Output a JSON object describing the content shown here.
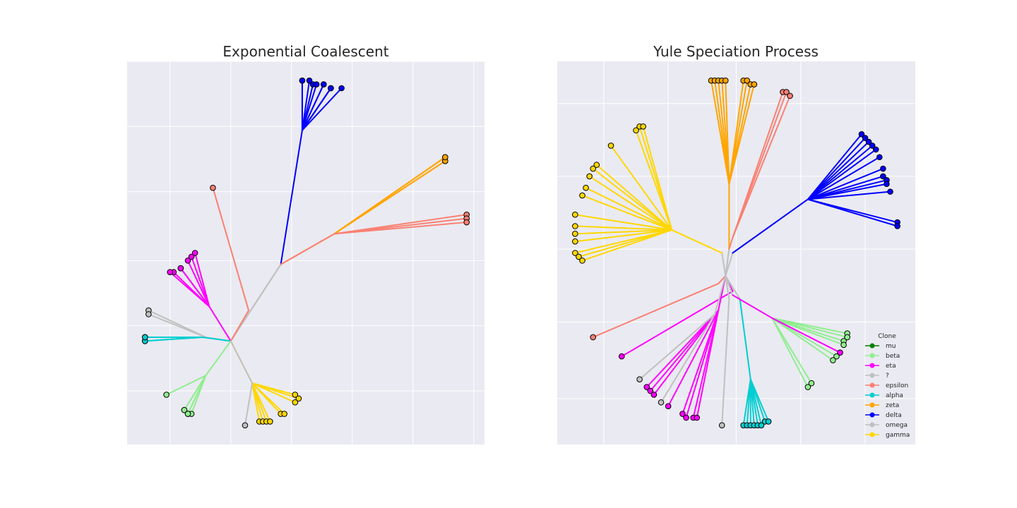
{
  "colors": {
    "background": "#eaeaf2",
    "grid": "#ffffff",
    "marker_edge": "#000000"
  },
  "legend": {
    "title": "Clone",
    "entries": [
      {
        "label": "mu",
        "color": "#008000"
      },
      {
        "label": "beta",
        "color": "#90ee90"
      },
      {
        "label": "eta",
        "color": "#ff00ff"
      },
      {
        "label": "?",
        "color": "#c0c0c0"
      },
      {
        "label": "epsilon",
        "color": "#fa8072"
      },
      {
        "label": "alpha",
        "color": "#00ced1"
      },
      {
        "label": "zeta",
        "color": "#ffa500"
      },
      {
        "label": "delta",
        "color": "#0000ff"
      },
      {
        "label": "omega",
        "color": "#c0c0c0"
      },
      {
        "label": "gamma",
        "color": "#ffd700"
      }
    ]
  },
  "chart_data": [
    {
      "type": "tree",
      "title": "Exponential Coalescent",
      "xlim": [
        0,
        100
      ],
      "ylim": [
        0,
        100
      ],
      "xticks": [
        12,
        29,
        46,
        63,
        80,
        97
      ],
      "yticks": [
        14,
        31,
        48,
        66,
        83,
        100
      ],
      "root": [
        29,
        27
      ],
      "clades": [
        {
          "clone": "delta",
          "color": "#0000ff",
          "path": [
            [
              43,
              47
            ],
            [
              49,
              82
            ]
          ],
          "leaves": [
            [
              49,
              95
            ],
            [
              49,
              95
            ],
            [
              51,
              95
            ],
            [
              52,
              94
            ],
            [
              55,
              94
            ],
            [
              57,
              93
            ],
            [
              57,
              93
            ],
            [
              57,
              93
            ],
            [
              55,
              94
            ],
            [
              60,
              93
            ],
            [
              53,
              94
            ]
          ]
        },
        {
          "clone": "zeta",
          "color": "#ffa500",
          "path": [
            [
              43,
              47
            ],
            [
              58,
              55
            ]
          ],
          "leaves": [
            [
              89,
              75
            ],
            [
              89,
              74
            ],
            [
              89,
              74
            ],
            [
              89,
              75
            ]
          ]
        },
        {
          "clone": "epsilon",
          "color": "#fa8072",
          "path": [
            [
              43,
              47
            ],
            [
              58,
              55
            ]
          ],
          "leaves": [
            [
              95,
              60
            ],
            [
              95,
              59
            ],
            [
              95,
              58
            ]
          ]
        },
        {
          "clone": "epsilon",
          "color": "#fa8072",
          "path": [
            [
              34,
              35
            ]
          ],
          "leaves": [
            [
              24,
              67
            ]
          ]
        },
        {
          "clone": "eta",
          "color": "#ff00ff",
          "path": [
            [
              23,
              36
            ]
          ],
          "leaves": [
            [
              18,
              49
            ],
            [
              19,
              50
            ],
            [
              15,
              46
            ],
            [
              15,
              46
            ],
            [
              13,
              45
            ],
            [
              12,
              45
            ],
            [
              17,
              48
            ]
          ]
        },
        {
          "clone": "?",
          "color": "#c0c0c0",
          "path": [
            [
              22,
              28
            ]
          ],
          "leaves": [
            [
              6,
              35
            ],
            [
              6,
              34
            ]
          ]
        },
        {
          "clone": "alpha",
          "color": "#00ced1",
          "path": [
            [
              21,
              28
            ]
          ],
          "leaves": [
            [
              5,
              28
            ],
            [
              5,
              28
            ],
            [
              5,
              27
            ],
            [
              5,
              27
            ],
            [
              5,
              28
            ]
          ]
        },
        {
          "clone": "beta",
          "color": "#90ee90",
          "path": [
            [
              22,
              18
            ]
          ],
          "leaves": [
            [
              11,
              13
            ],
            [
              16,
              9
            ],
            [
              16,
              9
            ],
            [
              17,
              8
            ],
            [
              18,
              8
            ],
            [
              17,
              8
            ]
          ]
        },
        {
          "clone": "gamma",
          "color": "#ffd700",
          "path": [
            [
              35,
              16
            ]
          ],
          "leaves": [
            [
              37,
              6
            ],
            [
              38,
              6
            ],
            [
              39,
              6
            ],
            [
              40,
              6
            ],
            [
              43,
              8
            ],
            [
              44,
              8
            ],
            [
              47,
              13
            ],
            [
              48,
              12
            ],
            [
              47,
              11
            ]
          ]
        },
        {
          "clone": "omega",
          "color": "#c0c0c0",
          "path": [
            [
              35,
              16
            ]
          ],
          "leaves": [
            [
              33,
              5
            ]
          ]
        }
      ]
    },
    {
      "type": "tree",
      "title": "Yule Speciation Process",
      "xlim": [
        0,
        100
      ],
      "ylim": [
        0,
        100
      ],
      "xticks": [
        13,
        31,
        50,
        68,
        86
      ],
      "yticks": [
        12,
        32,
        51,
        70,
        89
      ],
      "root": [
        47,
        44
      ],
      "clades": [
        {
          "clone": "zeta",
          "color": "#ffa500",
          "path": [
            [
              48,
              51
            ],
            [
              48,
              68
            ]
          ],
          "leaves": [
            [
              43,
              95
            ],
            [
              44,
              95
            ],
            [
              45,
              95
            ],
            [
              46,
              95
            ],
            [
              47,
              95
            ],
            [
              52,
              95
            ],
            [
              53,
              95
            ],
            [
              54,
              94
            ],
            [
              55,
              94
            ]
          ]
        },
        {
          "clone": "epsilon",
          "color": "#fa8072",
          "path": [
            [
              48,
              51
            ],
            [
              49,
              54
            ]
          ],
          "leaves": [
            [
              63,
              92
            ],
            [
              64,
              92
            ],
            [
              65,
              91
            ]
          ]
        },
        {
          "clone": "delta",
          "color": "#0000ff",
          "path": [
            [
              49,
              50
            ],
            [
              70,
              64
            ]
          ],
          "leaves": [
            [
              85,
              81
            ],
            [
              86,
              80
            ],
            [
              87,
              79
            ],
            [
              88,
              78
            ],
            [
              89,
              77
            ],
            [
              90,
              75
            ],
            [
              91,
              72
            ],
            [
              91,
              70
            ],
            [
              92,
              69
            ],
            [
              92,
              68
            ],
            [
              93,
              66
            ],
            [
              95,
              58
            ],
            [
              95,
              57
            ]
          ]
        },
        {
          "clone": "gamma",
          "color": "#ffd700",
          "path": [
            [
              46,
              50
            ],
            [
              32,
              56
            ]
          ],
          "leaves": [
            [
              22,
              82
            ],
            [
              23,
              83
            ],
            [
              24,
              83
            ],
            [
              15,
              78
            ],
            [
              11,
              73
            ],
            [
              10,
              72
            ],
            [
              9,
              70
            ],
            [
              8,
              67
            ],
            [
              7,
              65
            ],
            [
              5,
              60
            ],
            [
              5,
              57
            ],
            [
              5,
              55
            ],
            [
              5,
              53
            ],
            [
              5,
              50
            ],
            [
              6,
              49
            ],
            [
              7,
              48
            ]
          ]
        },
        {
          "clone": "epsilon",
          "color": "#fa8072",
          "path": [
            [
              45,
              42
            ]
          ],
          "leaves": [
            [
              10,
              28
            ]
          ]
        },
        {
          "clone": "eta",
          "color": "#ff00ff",
          "path": [
            [
              49,
              40
            ]
          ],
          "leaves": [
            [
              18,
              23
            ]
          ]
        },
        {
          "clone": "eta",
          "color": "#ff00ff",
          "path": [
            [
              45,
              35
            ]
          ],
          "leaves": [
            [
              25,
              15
            ],
            [
              26,
              14
            ],
            [
              27,
              13
            ],
            [
              31,
              10
            ],
            [
              35,
              8
            ],
            [
              36,
              7
            ],
            [
              38,
              7
            ],
            [
              39,
              7
            ]
          ]
        },
        {
          "clone": "?",
          "color": "#c0c0c0",
          "path": [
            [
              44,
              34
            ]
          ],
          "leaves": [
            [
              23,
              17
            ],
            [
              29,
              11
            ]
          ]
        },
        {
          "clone": "omega",
          "color": "#c0c0c0",
          "path": [
            [
              48,
              38
            ]
          ],
          "leaves": [
            [
              46,
              5
            ]
          ]
        },
        {
          "clone": "alpha",
          "color": "#00ced1",
          "path": [
            [
              51,
              38
            ],
            [
              54,
              17
            ]
          ],
          "leaves": [
            [
              52,
              5
            ],
            [
              53,
              5
            ],
            [
              54,
              5
            ],
            [
              55,
              5
            ],
            [
              56,
              5
            ],
            [
              57,
              5
            ],
            [
              58,
              6
            ],
            [
              59,
              6
            ]
          ]
        },
        {
          "clone": "beta",
          "color": "#90ee90",
          "path": [
            [
              49,
              39
            ],
            [
              60,
              33
            ]
          ],
          "leaves": [
            [
              81,
              29
            ],
            [
              81,
              28
            ],
            [
              80,
              27
            ],
            [
              80,
              26
            ],
            [
              78,
              23
            ],
            [
              77,
              22
            ],
            [
              71,
              16
            ],
            [
              70,
              15
            ]
          ]
        },
        {
          "clone": "eta",
          "color": "#ff00ff",
          "path": [
            [
              49,
              39
            ],
            [
              60,
              33
            ]
          ],
          "leaves": [
            [
              79,
              24
            ]
          ]
        }
      ]
    }
  ]
}
